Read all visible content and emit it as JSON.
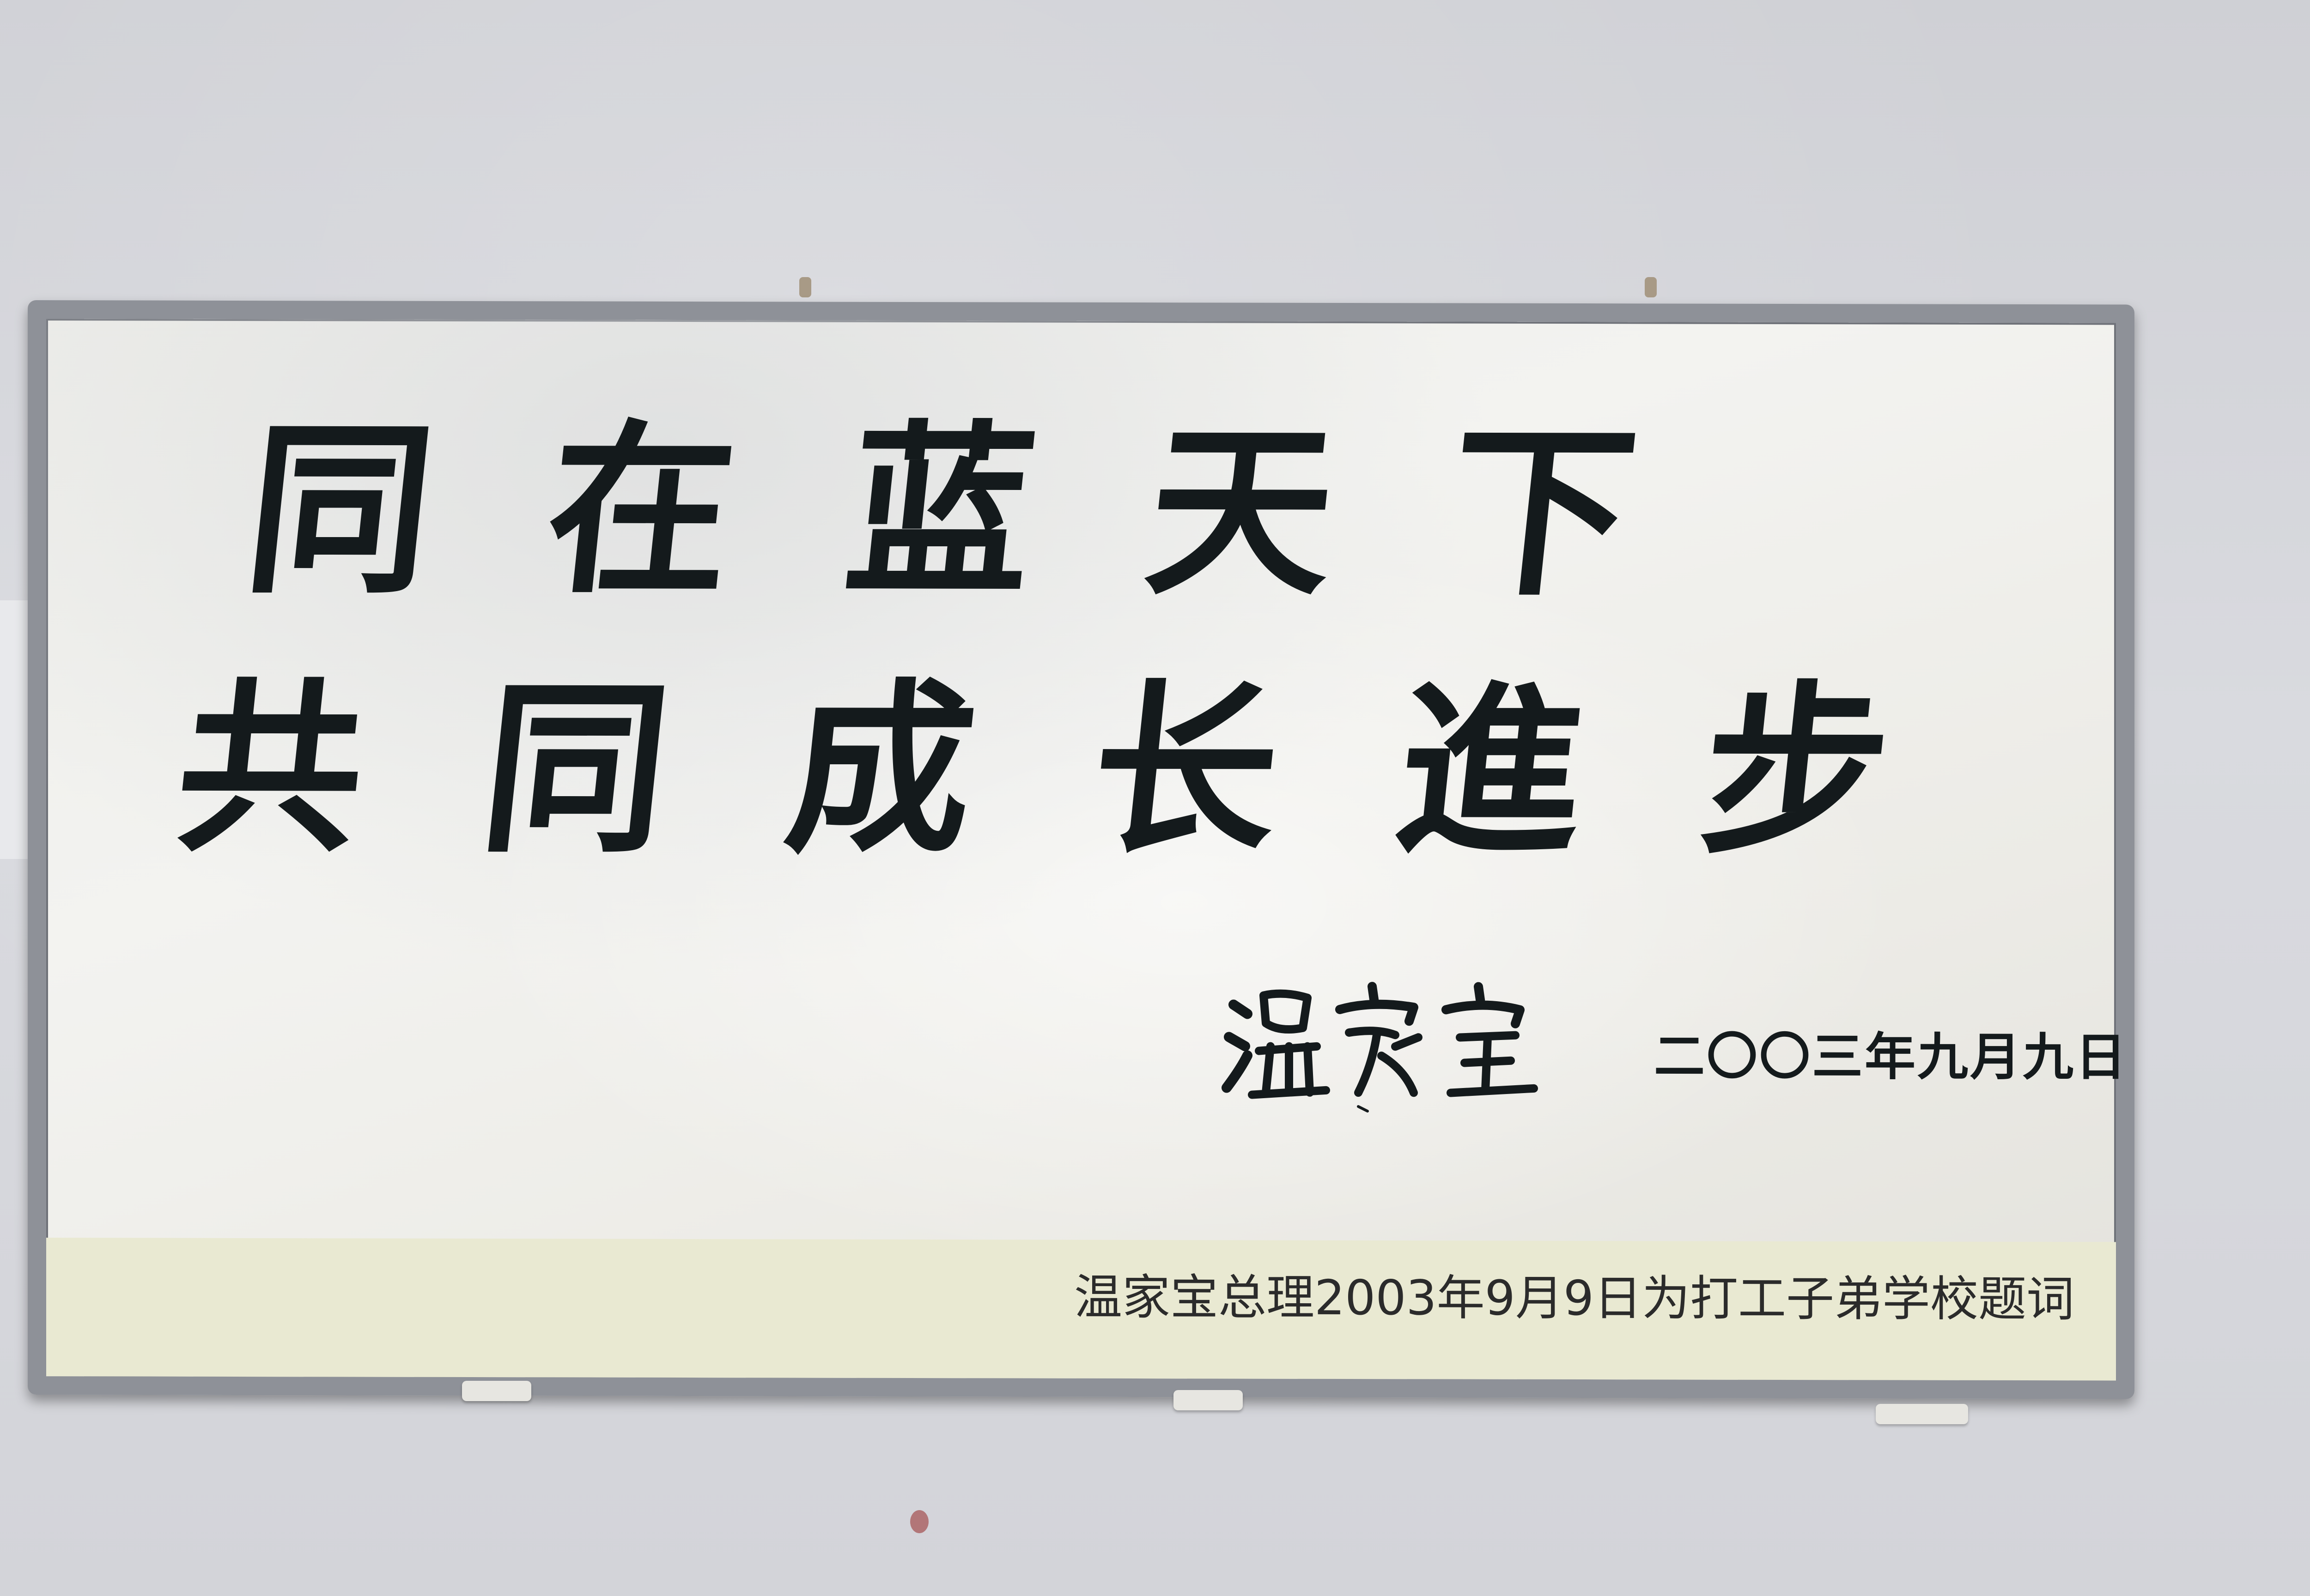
{
  "scene": {
    "wall_color": "#d6d7dc",
    "frame_color": "#8e9198",
    "board_color": "#efefeb",
    "ink_color": "#141a1c",
    "caption_band_color": "#e9e9d2"
  },
  "board": {
    "line_1": "同在蓝天下",
    "line_2": "共同成长進步",
    "signature": "温家宝",
    "date": "二〇〇三年九月九日",
    "caption": "温家宝总理2003年9月9日为打工子弟学校题词"
  }
}
